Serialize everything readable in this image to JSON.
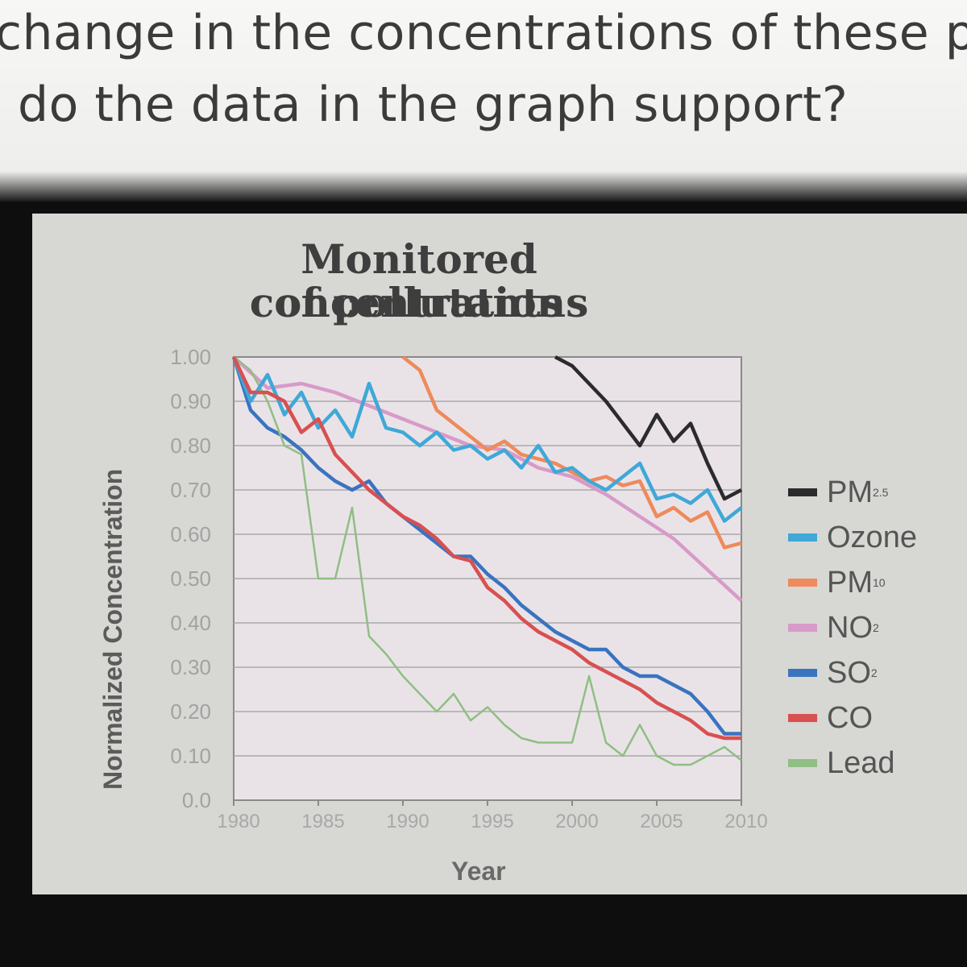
{
  "question": {
    "line1": "change in the concentrations of these p",
    "line2": "do the data in the graph support?"
  },
  "chart_data": {
    "type": "line",
    "title_line1": "Monitored concentrations",
    "title_line2": "of pollutants",
    "xlabel": "Year",
    "ylabel": "Normalized Concentration",
    "xlim": [
      1980,
      2010
    ],
    "ylim": [
      0,
      1.0
    ],
    "x_ticks": [
      1980,
      1985,
      1990,
      1995,
      2000,
      2005,
      2010
    ],
    "y_ticks": [
      "1.00",
      "0.90",
      "0.80",
      "0.70",
      "0.60",
      "0.50",
      "0.40",
      "0.30",
      "0.20",
      "0.10",
      "0.0"
    ],
    "grid": "horizontal",
    "legend_position": "right",
    "series": [
      {
        "name": "PM",
        "sub": "2.5",
        "color": "#2b2b2b",
        "x": [
          1999,
          2000,
          2001,
          2002,
          2003,
          2004,
          2005,
          2006,
          2007,
          2008,
          2009,
          2010
        ],
        "y": [
          1.0,
          0.98,
          0.94,
          0.9,
          0.85,
          0.8,
          0.87,
          0.81,
          0.85,
          0.76,
          0.68,
          0.7
        ]
      },
      {
        "name": "Ozone",
        "sub": "",
        "color": "#3fa8d8",
        "x": [
          1980,
          1981,
          1982,
          1983,
          1984,
          1985,
          1986,
          1987,
          1988,
          1989,
          1990,
          1991,
          1992,
          1993,
          1994,
          1995,
          1996,
          1997,
          1998,
          1999,
          2000,
          2001,
          2002,
          2003,
          2004,
          2005,
          2006,
          2007,
          2008,
          2009,
          2010
        ],
        "y": [
          1.0,
          0.9,
          0.96,
          0.87,
          0.92,
          0.84,
          0.88,
          0.82,
          0.94,
          0.84,
          0.83,
          0.8,
          0.83,
          0.79,
          0.8,
          0.77,
          0.79,
          0.75,
          0.8,
          0.74,
          0.75,
          0.72,
          0.7,
          0.73,
          0.76,
          0.68,
          0.69,
          0.67,
          0.7,
          0.63,
          0.66
        ]
      },
      {
        "name": "PM",
        "sub": "10",
        "color": "#ee8a5c",
        "x": [
          1990,
          1991,
          1992,
          1993,
          1994,
          1995,
          1996,
          1997,
          1998,
          1999,
          2000,
          2001,
          2002,
          2003,
          2004,
          2005,
          2006,
          2007,
          2008,
          2009,
          2010
        ],
        "y": [
          1.0,
          0.97,
          0.88,
          0.85,
          0.82,
          0.79,
          0.81,
          0.78,
          0.77,
          0.76,
          0.74,
          0.72,
          0.73,
          0.71,
          0.72,
          0.64,
          0.66,
          0.63,
          0.65,
          0.57,
          0.58
        ]
      },
      {
        "name": "NO",
        "sub": "2",
        "color": "#d89ac8",
        "x": [
          1980,
          1982,
          1984,
          1986,
          1988,
          1990,
          1992,
          1994,
          1996,
          1998,
          2000,
          2002,
          2004,
          2006,
          2008,
          2010
        ],
        "y": [
          1.0,
          0.93,
          0.94,
          0.92,
          0.89,
          0.86,
          0.83,
          0.8,
          0.79,
          0.75,
          0.73,
          0.69,
          0.64,
          0.59,
          0.52,
          0.45
        ]
      },
      {
        "name": "SO",
        "sub": "2",
        "color": "#3a73c0",
        "x": [
          1980,
          1981,
          1982,
          1983,
          1984,
          1985,
          1986,
          1987,
          1988,
          1989,
          1990,
          1991,
          1992,
          1993,
          1994,
          1995,
          1996,
          1997,
          1998,
          1999,
          2000,
          2001,
          2002,
          2003,
          2004,
          2005,
          2006,
          2007,
          2008,
          2009,
          2010
        ],
        "y": [
          1.0,
          0.88,
          0.84,
          0.82,
          0.79,
          0.75,
          0.72,
          0.7,
          0.72,
          0.67,
          0.64,
          0.61,
          0.58,
          0.55,
          0.55,
          0.51,
          0.48,
          0.44,
          0.41,
          0.38,
          0.36,
          0.34,
          0.34,
          0.3,
          0.28,
          0.28,
          0.26,
          0.24,
          0.2,
          0.15,
          0.15
        ]
      },
      {
        "name": "CO",
        "sub": "",
        "color": "#d85050",
        "x": [
          1980,
          1981,
          1982,
          1983,
          1984,
          1985,
          1986,
          1987,
          1988,
          1989,
          1990,
          1991,
          1992,
          1993,
          1994,
          1995,
          1996,
          1997,
          1998,
          1999,
          2000,
          2001,
          2002,
          2003,
          2004,
          2005,
          2006,
          2007,
          2008,
          2009,
          2010
        ],
        "y": [
          1.0,
          0.92,
          0.92,
          0.9,
          0.83,
          0.86,
          0.78,
          0.74,
          0.7,
          0.67,
          0.64,
          0.62,
          0.59,
          0.55,
          0.54,
          0.48,
          0.45,
          0.41,
          0.38,
          0.36,
          0.34,
          0.31,
          0.29,
          0.27,
          0.25,
          0.22,
          0.2,
          0.18,
          0.15,
          0.14,
          0.14
        ]
      },
      {
        "name": "Lead",
        "sub": "",
        "color": "#8fbf82",
        "x": [
          1980,
          1981,
          1982,
          1983,
          1984,
          1985,
          1986,
          1987,
          1988,
          1989,
          1990,
          1991,
          1992,
          1993,
          1994,
          1995,
          1996,
          1997,
          1998,
          1999,
          2000,
          2001,
          2002,
          2003,
          2004,
          2005,
          2006,
          2007,
          2008,
          2009,
          2010
        ],
        "y": [
          1.0,
          0.97,
          0.9,
          0.8,
          0.78,
          0.5,
          0.5,
          0.66,
          0.37,
          0.33,
          0.28,
          0.24,
          0.2,
          0.24,
          0.18,
          0.21,
          0.17,
          0.14,
          0.13,
          0.13,
          0.13,
          0.28,
          0.13,
          0.1,
          0.17,
          0.1,
          0.08,
          0.08,
          0.1,
          0.12,
          0.09
        ]
      }
    ]
  }
}
